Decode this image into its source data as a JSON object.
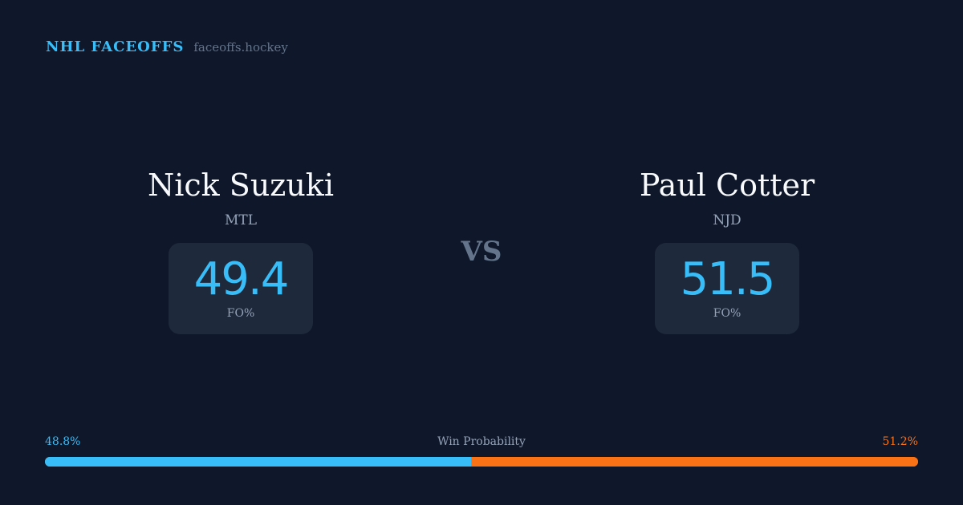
{
  "brand": {
    "name": "NHL FACEOFFS",
    "site": "faceoffs.hockey"
  },
  "players": [
    {
      "name": "Nick Suzuki",
      "team": "MTL",
      "fo_pct": "49.4",
      "fo_label": "FO%"
    },
    {
      "name": "Paul Cotter",
      "team": "NJD",
      "fo_pct": "51.5",
      "fo_label": "FO%"
    }
  ],
  "vs": "VS",
  "win_probability": {
    "label": "Win Probability",
    "left": "48.8%",
    "right": "51.2%",
    "left_value": 48.8,
    "right_value": 51.2,
    "left_color": "#38bdf8",
    "right_color": "#f97316"
  }
}
